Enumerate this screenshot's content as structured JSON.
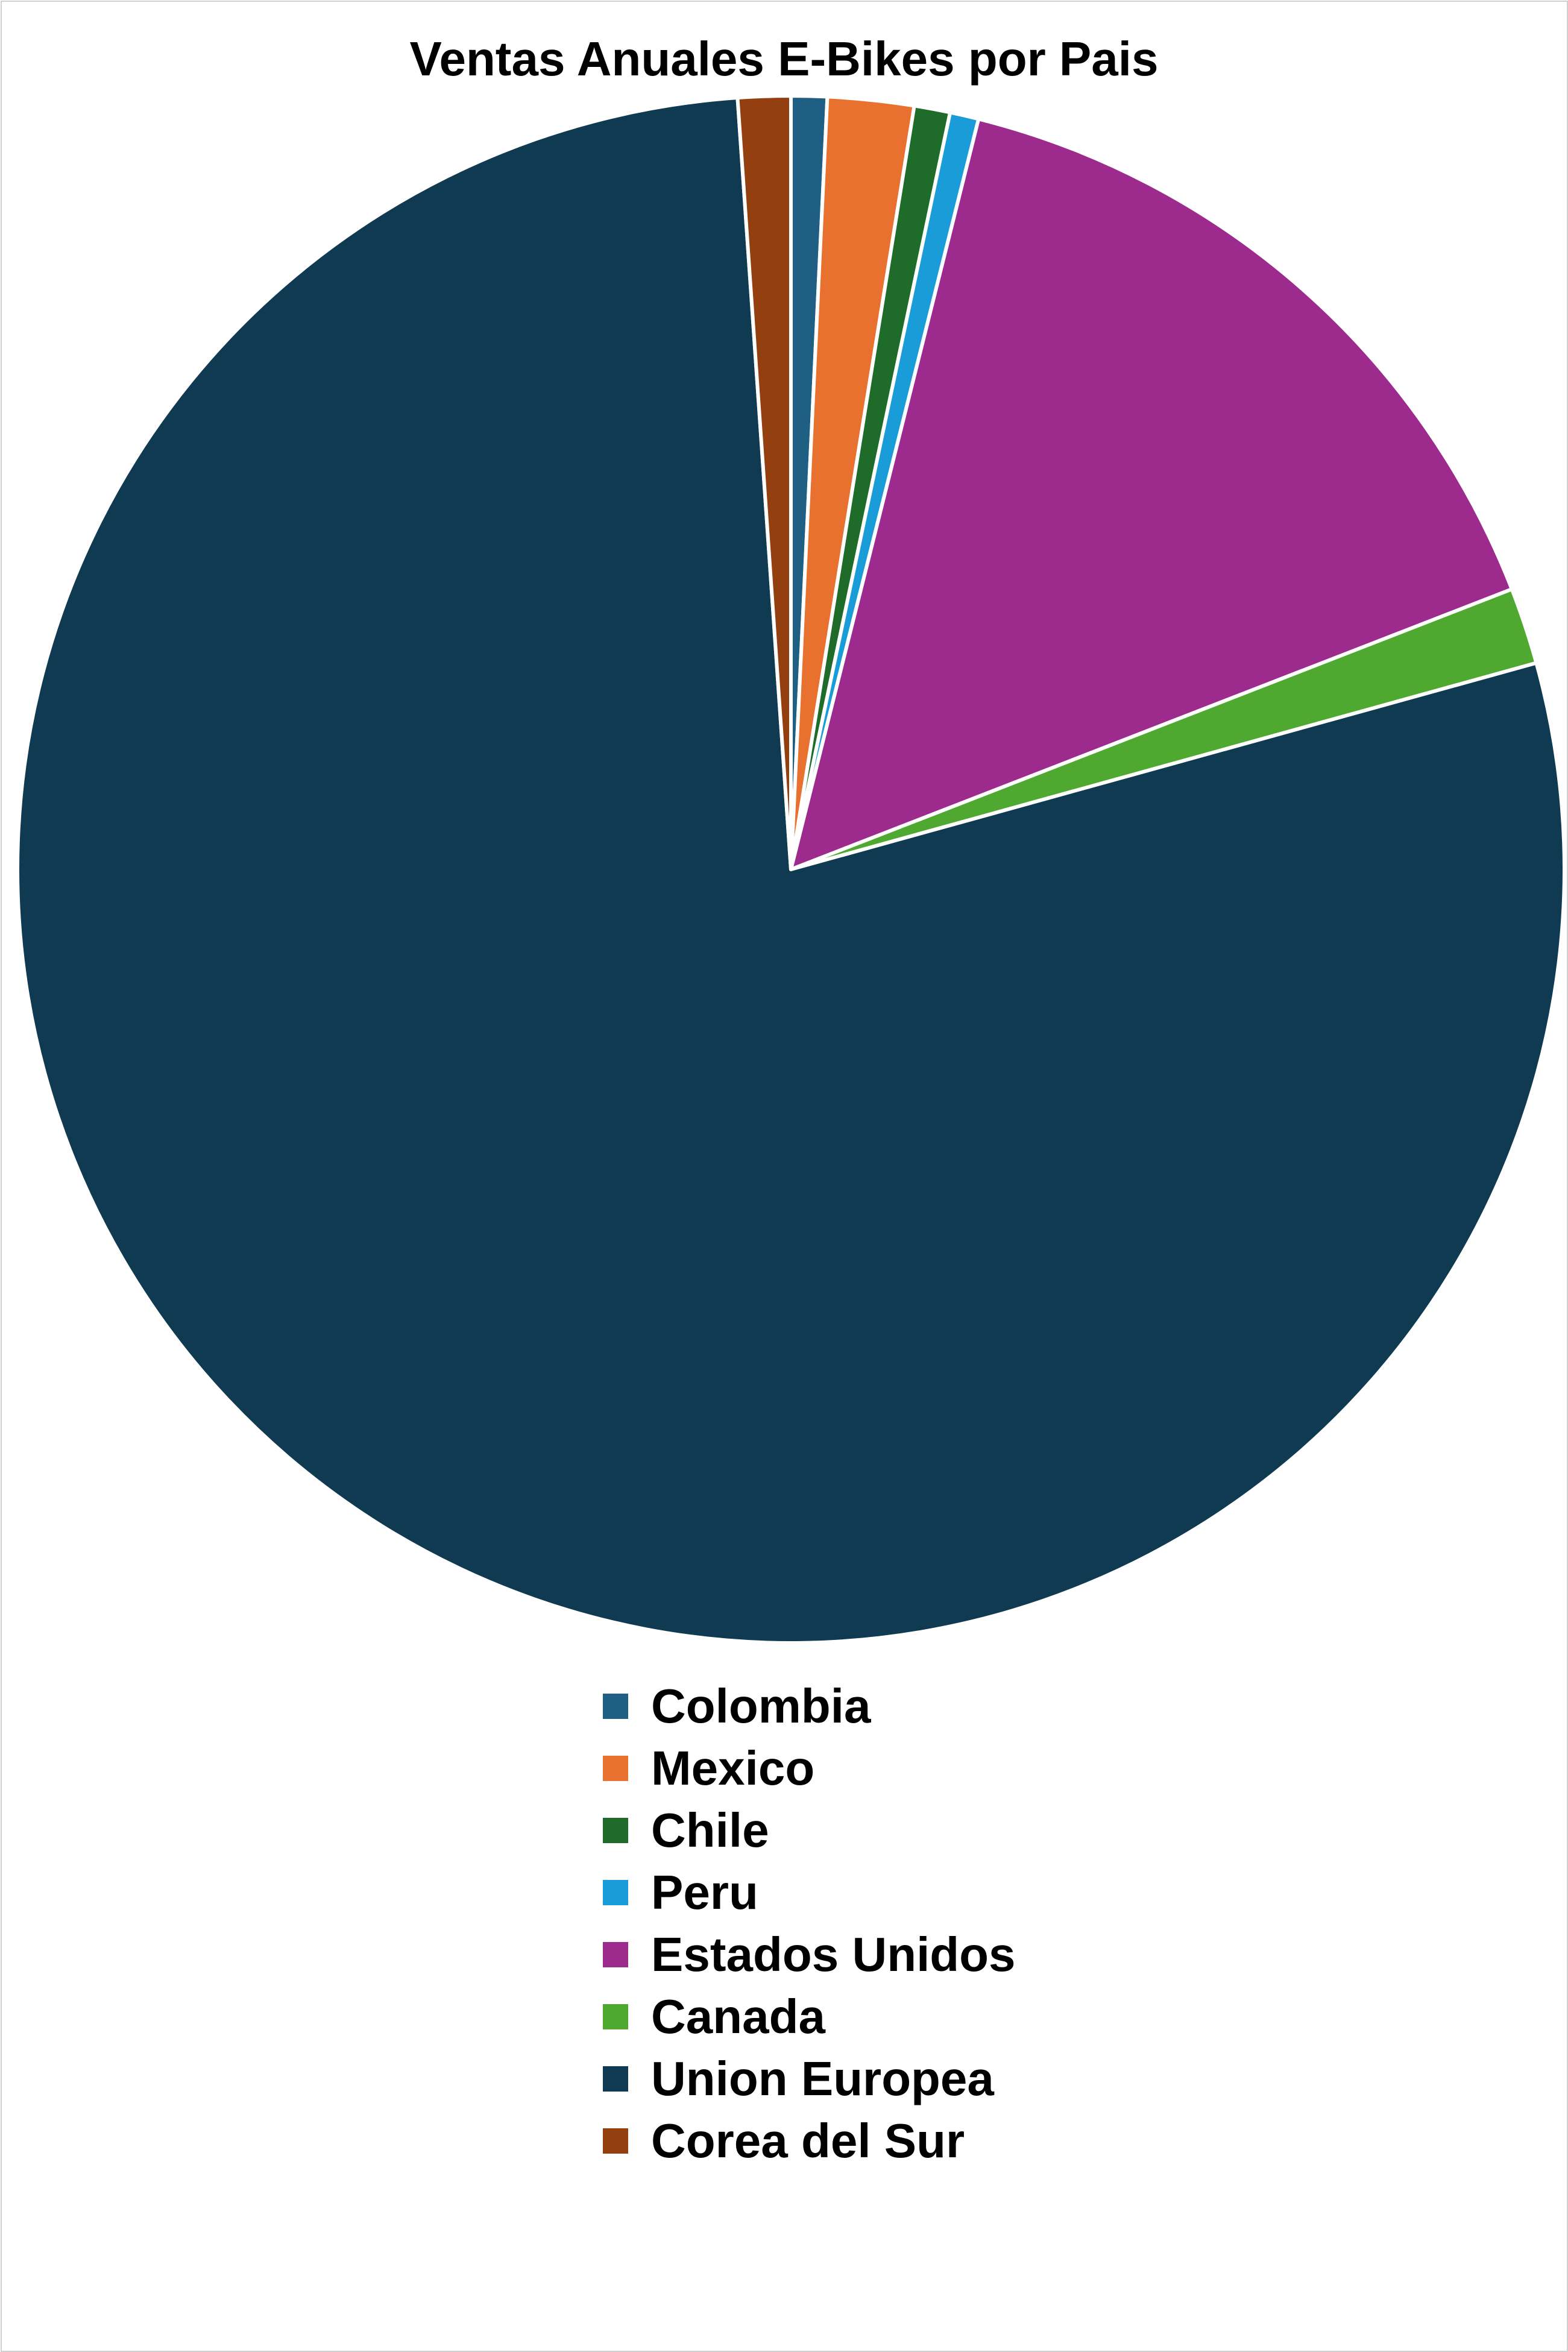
{
  "chart_data": {
    "type": "pie",
    "title": "Ventas Anuales E-Bikes por Pais",
    "labels": [
      "Colombia",
      "Mexico",
      "Chile",
      "Peru",
      "Estados Unidos",
      "Canada",
      "Union Europea",
      "Corea del Sur"
    ],
    "values": [
      0.75,
      1.8,
      0.75,
      0.6,
      15.2,
      1.6,
      78.2,
      1.1
    ],
    "colors": [
      "#1f5f84",
      "#e87130",
      "#1e6b2a",
      "#1a9cd8",
      "#9d2b8e",
      "#4fa830",
      "#0f3a51",
      "#933f10"
    ],
    "start_angle_deg": 0,
    "direction": "clockwise",
    "legend": "bottom-center"
  }
}
